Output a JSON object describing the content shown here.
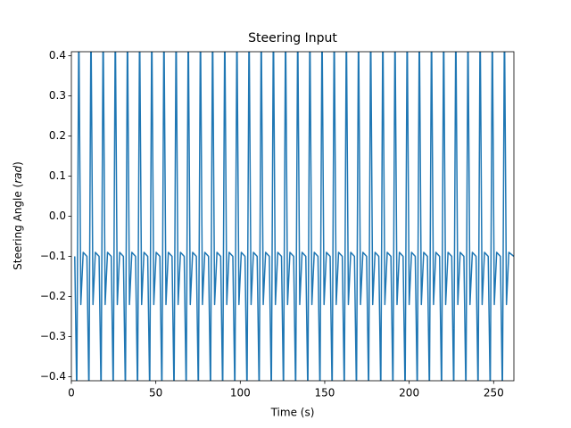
{
  "chart_data": {
    "type": "line",
    "title": "Steering Input",
    "xlabel": "Time (s)",
    "ylabel_parts": [
      "Steering Angle (",
      "rad",
      ")"
    ],
    "xlim": [
      0,
      262
    ],
    "ylim": [
      -0.41,
      0.41
    ],
    "xticks": [
      0,
      50,
      100,
      150,
      200,
      250
    ],
    "yticks": [
      {
        "value": -0.4,
        "label": "−0.4"
      },
      {
        "value": -0.3,
        "label": "−0.3"
      },
      {
        "value": -0.2,
        "label": "−0.2"
      },
      {
        "value": -0.1,
        "label": "−0.1"
      },
      {
        "value": 0,
        "label": "0.0"
      },
      0.1,
      0.2,
      0.3,
      0.4
    ],
    "grid": false,
    "x": [
      2.0,
      3.2,
      4.4,
      5.6,
      7.0,
      9.2,
      10.4,
      11.6,
      12.8,
      14.2,
      16.4,
      17.6,
      18.8,
      20.0,
      21.4,
      23.6,
      24.8,
      26.0,
      27.2,
      28.6,
      30.8,
      32.0,
      33.2,
      34.4,
      35.8,
      38.0,
      39.2,
      40.4,
      41.6,
      43.0,
      45.2,
      46.4,
      47.6,
      48.8,
      50.2,
      52.4,
      53.6,
      54.8,
      56.0,
      57.4,
      59.6,
      60.8,
      62.0,
      63.2,
      64.6,
      66.8,
      68.0,
      69.2,
      70.4,
      71.8,
      74.0,
      75.2,
      76.4,
      77.6,
      79.0,
      81.2,
      82.4,
      83.6,
      84.8,
      86.2,
      88.4,
      89.6,
      90.8,
      92.0,
      93.4,
      95.6,
      96.8,
      98.0,
      99.2,
      100.6,
      102.8,
      104.0,
      105.2,
      106.4,
      107.8,
      110.0,
      111.2,
      112.4,
      113.6,
      115.0,
      117.2,
      118.4,
      119.6,
      120.8,
      122.2,
      124.4,
      125.6,
      126.8,
      128.0,
      129.4,
      131.6,
      132.8,
      134.0,
      135.2,
      136.6,
      138.8,
      140.0,
      141.2,
      142.4,
      143.8,
      146.0,
      147.2,
      148.4,
      149.6,
      151.0,
      153.2,
      154.4,
      155.6,
      156.8,
      158.2,
      160.4,
      161.6,
      162.8,
      164.0,
      165.4,
      167.6,
      168.8,
      170.0,
      171.2,
      172.6,
      174.8,
      176.0,
      177.2,
      178.4,
      179.8,
      182.0,
      183.2,
      184.4,
      185.6,
      187.0,
      189.2,
      190.4,
      191.6,
      192.8,
      194.2,
      196.4,
      197.6,
      198.8,
      200.0,
      201.4,
      203.6,
      204.8,
      206.0,
      207.2,
      208.6,
      210.8,
      212.0,
      213.2,
      214.4,
      215.8,
      218.0,
      219.2,
      220.4,
      221.6,
      223.0,
      225.2,
      226.4,
      227.6,
      228.8,
      230.2,
      232.4,
      233.6,
      234.8,
      236.0,
      237.4,
      239.6,
      240.8,
      242.0,
      243.2,
      244.6,
      246.8,
      248.0,
      249.2,
      250.4,
      251.8,
      254.0,
      255.2,
      256.4,
      257.6,
      259.0,
      262.0
    ],
    "series": [
      {
        "color": "#1f77b4",
        "values": [
          -0.1,
          -0.45,
          0.5,
          -0.22,
          -0.09,
          -0.1,
          -0.45,
          0.5,
          -0.22,
          -0.09,
          -0.1,
          -0.45,
          0.5,
          -0.22,
          -0.09,
          -0.1,
          -0.45,
          0.5,
          -0.22,
          -0.09,
          -0.1,
          -0.45,
          0.5,
          -0.22,
          -0.09,
          -0.1,
          -0.45,
          0.5,
          -0.22,
          -0.09,
          -0.1,
          -0.45,
          0.5,
          -0.22,
          -0.09,
          -0.1,
          -0.45,
          0.5,
          -0.22,
          -0.09,
          -0.1,
          -0.45,
          0.5,
          -0.22,
          -0.09,
          -0.1,
          -0.45,
          0.5,
          -0.22,
          -0.09,
          -0.1,
          -0.45,
          0.5,
          -0.22,
          -0.09,
          -0.1,
          -0.45,
          0.5,
          -0.22,
          -0.09,
          -0.1,
          -0.45,
          0.5,
          -0.22,
          -0.09,
          -0.1,
          -0.45,
          0.5,
          -0.22,
          -0.09,
          -0.1,
          -0.45,
          0.5,
          -0.22,
          -0.09,
          -0.1,
          -0.45,
          0.5,
          -0.22,
          -0.09,
          -0.1,
          -0.45,
          0.5,
          -0.22,
          -0.09,
          -0.1,
          -0.45,
          0.5,
          -0.22,
          -0.09,
          -0.1,
          -0.45,
          0.5,
          -0.22,
          -0.09,
          -0.1,
          -0.45,
          0.5,
          -0.22,
          -0.09,
          -0.1,
          -0.45,
          0.5,
          -0.22,
          -0.09,
          -0.1,
          -0.45,
          0.5,
          -0.22,
          -0.09,
          -0.1,
          -0.45,
          0.5,
          -0.22,
          -0.09,
          -0.1,
          -0.45,
          0.5,
          -0.22,
          -0.09,
          -0.1,
          -0.45,
          0.5,
          -0.22,
          -0.09,
          -0.1,
          -0.45,
          0.5,
          -0.22,
          -0.09,
          -0.1,
          -0.45,
          0.5,
          -0.22,
          -0.09,
          -0.1,
          -0.45,
          0.5,
          -0.22,
          -0.09,
          -0.1,
          -0.45,
          0.5,
          -0.22,
          -0.09,
          -0.1,
          -0.45,
          0.5,
          -0.22,
          -0.09,
          -0.1,
          -0.45,
          0.5,
          -0.22,
          -0.09,
          -0.1,
          -0.45,
          0.5,
          -0.22,
          -0.09,
          -0.1,
          -0.45,
          0.5,
          -0.22,
          -0.09,
          -0.1,
          -0.45,
          0.5,
          -0.22,
          -0.09,
          -0.1,
          -0.45,
          0.5,
          -0.22,
          -0.09,
          -0.1,
          -0.45,
          0.5,
          -0.22,
          -0.09,
          -0.1
        ]
      }
    ]
  }
}
